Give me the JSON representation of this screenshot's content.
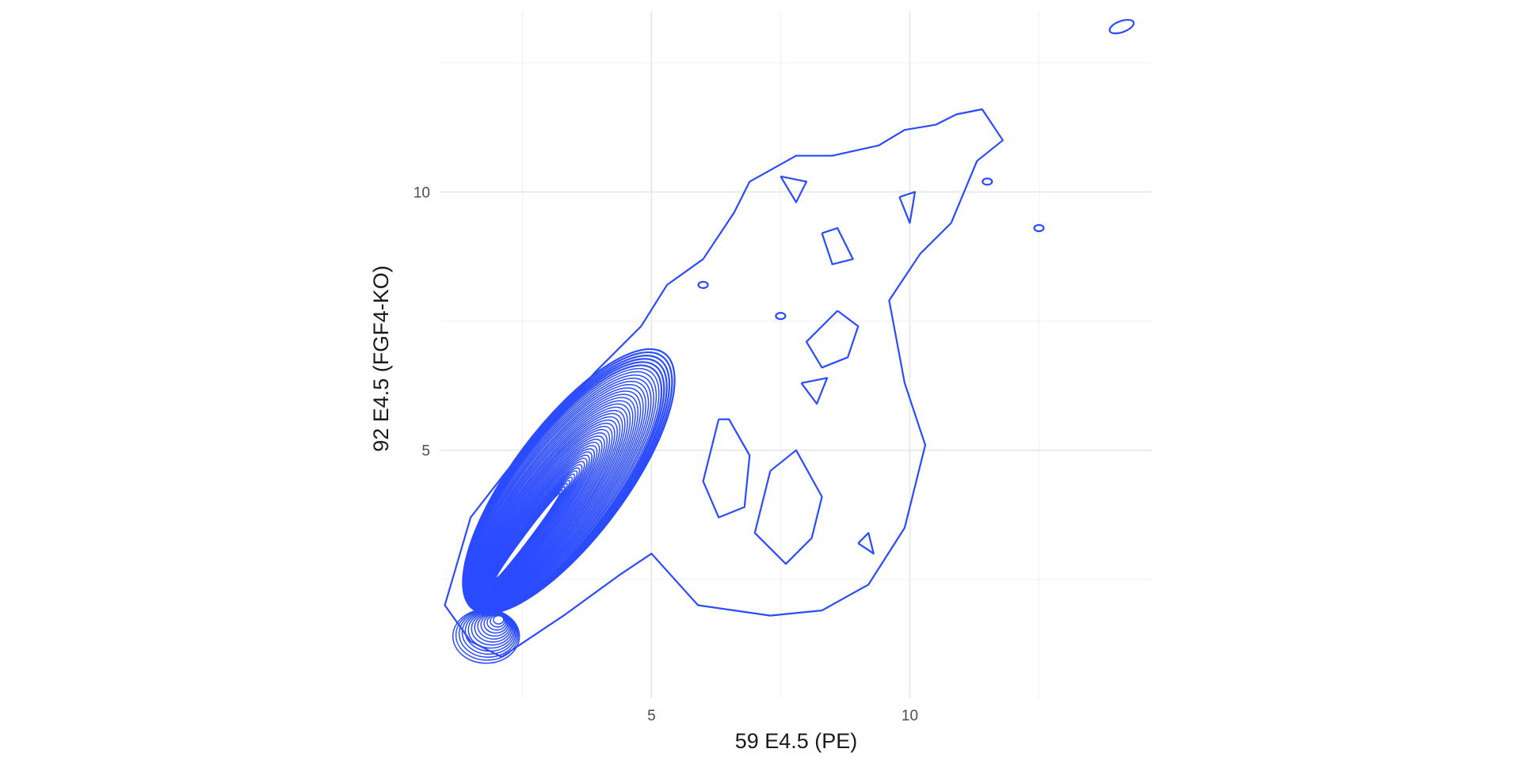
{
  "chart_data": {
    "type": "contour",
    "xlabel": "59 E4.5 (PE)",
    "ylabel": "92 E4.5 (FGF4-KO)",
    "x_ticks": [
      5,
      10
    ],
    "y_ticks": [
      5,
      10
    ],
    "xlim": [
      0.9,
      14.7
    ],
    "ylim": [
      0.2,
      13.5
    ],
    "grid": true,
    "legend": "none",
    "line_color": "#2b4bff",
    "density_peak": {
      "x": 1.8,
      "y": 1.4
    },
    "main_ridge": {
      "from": [
        1.6,
        2.0
      ],
      "to": [
        5.2,
        6.8
      ]
    },
    "outer_contour": [
      [
        1.5,
        1.3
      ],
      [
        2.1,
        1.0
      ],
      [
        3.3,
        1.8
      ],
      [
        4.4,
        2.6
      ],
      [
        5.0,
        3.0
      ],
      [
        5.9,
        2.0
      ],
      [
        7.3,
        1.8
      ],
      [
        8.3,
        1.9
      ],
      [
        9.2,
        2.4
      ],
      [
        9.9,
        3.5
      ],
      [
        10.3,
        5.1
      ],
      [
        9.9,
        6.3
      ],
      [
        9.6,
        7.9
      ],
      [
        10.2,
        8.8
      ],
      [
        10.8,
        9.4
      ],
      [
        11.3,
        10.6
      ],
      [
        11.8,
        11.0
      ],
      [
        11.4,
        11.6
      ],
      [
        10.9,
        11.5
      ],
      [
        10.5,
        11.3
      ],
      [
        9.9,
        11.2
      ],
      [
        9.4,
        10.9
      ],
      [
        8.5,
        10.7
      ],
      [
        7.8,
        10.7
      ],
      [
        6.9,
        10.2
      ],
      [
        6.6,
        9.6
      ],
      [
        6.0,
        8.7
      ],
      [
        5.3,
        8.2
      ],
      [
        4.8,
        7.4
      ],
      [
        3.9,
        6.5
      ],
      [
        3.1,
        5.6
      ],
      [
        2.2,
        4.6
      ],
      [
        1.5,
        3.7
      ],
      [
        1.0,
        2.0
      ],
      [
        1.5,
        1.3
      ]
    ],
    "isolated_contours": [
      {
        "x": 14.1,
        "y": 13.2
      },
      {
        "x": 12.5,
        "y": 9.3
      },
      {
        "x": 11.5,
        "y": 10.2
      },
      {
        "x": 6.0,
        "y": 8.2
      },
      {
        "x": 7.5,
        "y": 7.6
      }
    ]
  }
}
